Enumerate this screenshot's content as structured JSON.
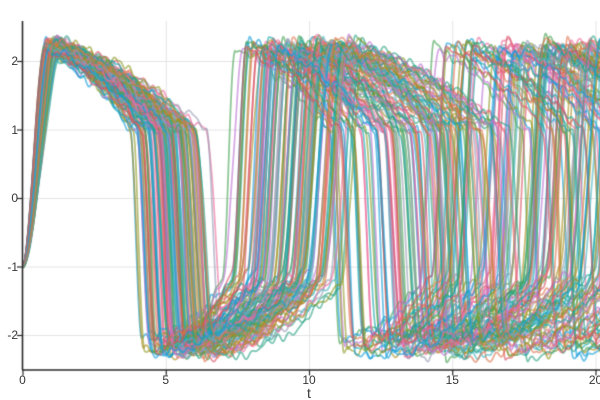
{
  "chart_data": {
    "type": "line",
    "subtype": "ensemble-trajectories",
    "title": "",
    "xlabel": "t",
    "ylabel": "",
    "xlim": [
      0,
      20
    ],
    "ylim": [
      -2.5,
      2.55
    ],
    "xticks": [
      0,
      5,
      10,
      15,
      20
    ],
    "yticks": [
      -2,
      -1,
      0,
      1,
      2
    ],
    "grid": true,
    "legend": false,
    "n_trajectories": 110,
    "description": "Ensemble of ~110 noisy relaxation-oscillator (van der Pol-like) trajectories solved over t in [0,20]. All start at y = -1 at t = 0, rise steeply to a peak near 2.2 by t ~ 1, decay slowly along the upper branch to ~1, drop rapidly to ~ -2.2, creep up along the lower branch, then jump back up. Per-trajectory parameter variation makes the phases spread apart over time: first drop around t = 4-7, second peak around t = 8-12.5, second drop around t = 11.5-16.5, third rise around t = 16-20.",
    "waveform": {
      "initial_value": -1.0,
      "initial_rise_duration": 1.0,
      "peak": 2.15,
      "overshoot": 0.08,
      "upper_end": 1.0,
      "upper_decay_duration": 3.9,
      "drop_duration": 0.55,
      "trough": -2.15,
      "lower_end": -1.2,
      "lower_rise_duration": 3.4,
      "jump_duration": 0.7,
      "base_period": 8.55
    },
    "ensemble": {
      "seed": 11,
      "speed_min": 0.84,
      "speed_max": 1.18,
      "duration_jitter": 0.15,
      "amplitude_jitter": 0.08,
      "noise_amplitude": 0.05,
      "drift_amplitude": 0.35
    },
    "style": {
      "palette": [
        "#119dd9",
        "#e0734d",
        "#44a151",
        "#bd72d3",
        "#ab8d1c",
        "#13a9ac",
        "#ec6a9c",
        "#949bb3",
        "#2aa283",
        "#8f9a24",
        "#45b4c2",
        "#d95464"
      ],
      "line_alpha": 0.6,
      "line_width": 1.8,
      "grid_color": "#e4e4e4",
      "axis_color": "#2a2a2a",
      "tick_label_color": "#363636",
      "background": "#ffffff"
    }
  }
}
